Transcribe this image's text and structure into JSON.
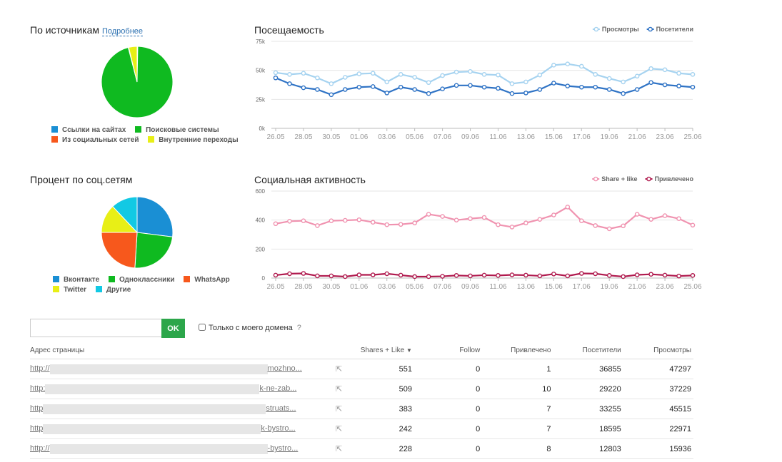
{
  "sources": {
    "title": "По источникам",
    "link": "Подробнее",
    "chart_data": {
      "type": "pie",
      "labels": [
        "Ссылки на сайтах",
        "Поисковые системы",
        "Из социальных сетей",
        "Внутренние переходы"
      ],
      "values": [
        0.3,
        95.7,
        0.2,
        3.8
      ],
      "colors": [
        "#1a8fd4",
        "#0fba20",
        "#f7581c",
        "#e8ef16"
      ]
    }
  },
  "social_pct": {
    "title": "Процент по соц.сетям",
    "chart_data": {
      "type": "pie",
      "labels": [
        "Вконтакте",
        "Одноклассники",
        "WhatsApp",
        "Twitter",
        "Другие"
      ],
      "values": [
        27,
        24,
        24,
        13,
        12
      ],
      "colors": [
        "#1a8fd4",
        "#0fba20",
        "#f7581c",
        "#e8ef16",
        "#12c9e4"
      ]
    }
  },
  "attendance": {
    "title": "Посещаемость",
    "chart_data": {
      "type": "line",
      "x_tick_labels": [
        "26.05",
        "28.05",
        "30.05",
        "01.06",
        "03.06",
        "05.06",
        "07.06",
        "09.06",
        "11.06",
        "13.06",
        "15.06",
        "17.06",
        "19.06",
        "21.06",
        "23.06",
        "25.06"
      ],
      "y_tick_labels": [
        "0k",
        "25k",
        "50k",
        "75k"
      ],
      "ylim": [
        0,
        75
      ],
      "series": [
        {
          "name": "Просмотры",
          "color": "#a6d3f0",
          "values": [
            48,
            46.5,
            47.5,
            43.5,
            38.5,
            44,
            47,
            47.5,
            40,
            46.5,
            44,
            39.5,
            45.5,
            48.5,
            49,
            46.5,
            46,
            38.5,
            40,
            46,
            54.5,
            55.5,
            53.5,
            46.5,
            43,
            40,
            45,
            51.5,
            50.5,
            47.5,
            46.5
          ]
        },
        {
          "name": "Посетители",
          "color": "#2f73c5",
          "values": [
            43.5,
            38.5,
            35,
            33.5,
            29,
            33.5,
            35.5,
            36,
            30.5,
            35.5,
            33.5,
            30,
            34,
            37,
            37,
            35.5,
            34.5,
            30,
            30.5,
            33.5,
            39,
            36.5,
            35.5,
            35.5,
            33.5,
            30,
            33.5,
            39.5,
            37.5,
            36.5,
            35.5
          ]
        }
      ]
    }
  },
  "social_activity": {
    "title": "Социальная активность",
    "chart_data": {
      "type": "line",
      "x_tick_labels": [
        "26.05",
        "28.05",
        "30.05",
        "01.06",
        "03.06",
        "05.06",
        "07.06",
        "09.06",
        "11.06",
        "13.06",
        "15.06",
        "17.06",
        "19.06",
        "21.06",
        "23.06",
        "25.06"
      ],
      "y_tick_labels": [
        "0",
        "200",
        "400",
        "600"
      ],
      "ylim": [
        0,
        600
      ],
      "series": [
        {
          "name": "Share + like",
          "color": "#f093b0",
          "values": [
            375,
            392,
            395,
            362,
            395,
            398,
            402,
            385,
            368,
            370,
            380,
            440,
            425,
            400,
            410,
            418,
            368,
            352,
            380,
            405,
            435,
            490,
            395,
            362,
            340,
            360,
            440,
            405,
            430,
            410,
            365
          ]
        },
        {
          "name": "Привлечено",
          "color": "#b01a4e",
          "values": [
            20,
            30,
            32,
            15,
            15,
            10,
            22,
            22,
            30,
            20,
            10,
            10,
            12,
            18,
            15,
            20,
            18,
            22,
            20,
            15,
            28,
            15,
            32,
            30,
            18,
            10,
            22,
            26,
            20,
            14,
            18
          ]
        }
      ]
    }
  },
  "search": {
    "placeholder": "",
    "button": "OK",
    "checkbox_label": "Только с моего домена",
    "help": "?"
  },
  "table": {
    "headers": {
      "url": "Адрес страницы",
      "shares": "Shares + Like",
      "follow": "Follow",
      "attracted": "Привлечено",
      "visitors": "Посетители",
      "views": "Просмотры"
    },
    "rows": [
      {
        "url_start": "http://",
        "url_end": "mozhno...",
        "shares": "551",
        "follow": "0",
        "attracted": "1",
        "visitors": "36855",
        "views": "47297"
      },
      {
        "url_start": "http:",
        "url_end": "k-ne-zab...",
        "shares": "509",
        "follow": "0",
        "attracted": "10",
        "visitors": "29220",
        "views": "37229"
      },
      {
        "url_start": "http",
        "url_end": "struats...",
        "shares": "383",
        "follow": "0",
        "attracted": "7",
        "visitors": "33255",
        "views": "45515"
      },
      {
        "url_start": "http",
        "url_end": "k-bystro...",
        "shares": "242",
        "follow": "0",
        "attracted": "7",
        "visitors": "18595",
        "views": "22971"
      },
      {
        "url_start": "http://",
        "url_end": "-bystro...",
        "shares": "228",
        "follow": "0",
        "attracted": "8",
        "visitors": "12803",
        "views": "15936"
      }
    ]
  }
}
